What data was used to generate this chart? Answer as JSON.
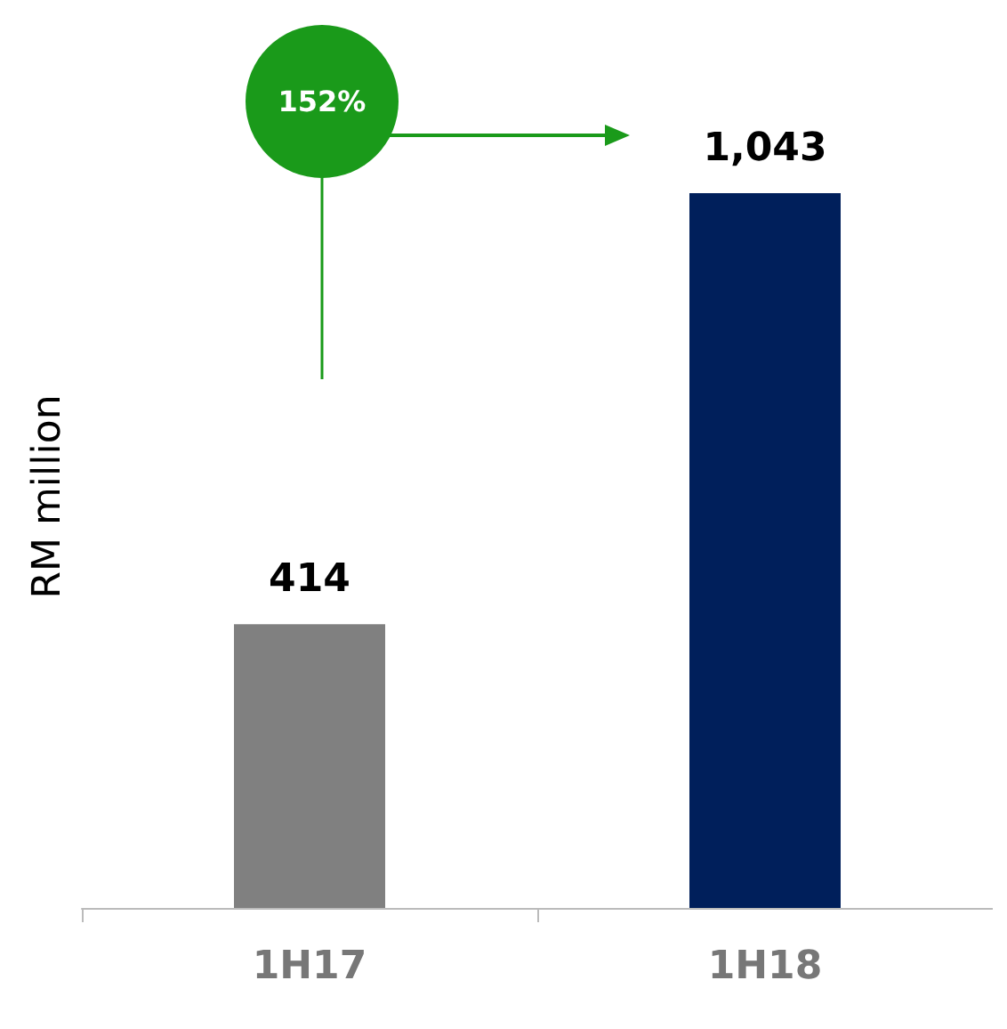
{
  "chart_data": {
    "type": "bar",
    "ylabel": "RM million",
    "categories": [
      "1H17",
      "1H18"
    ],
    "values": [
      414,
      1043
    ],
    "colors": [
      "#808080",
      "#001f5b"
    ],
    "value_labels": [
      "414",
      "1,043"
    ],
    "annotations": [
      "152%"
    ],
    "grid": false
  }
}
